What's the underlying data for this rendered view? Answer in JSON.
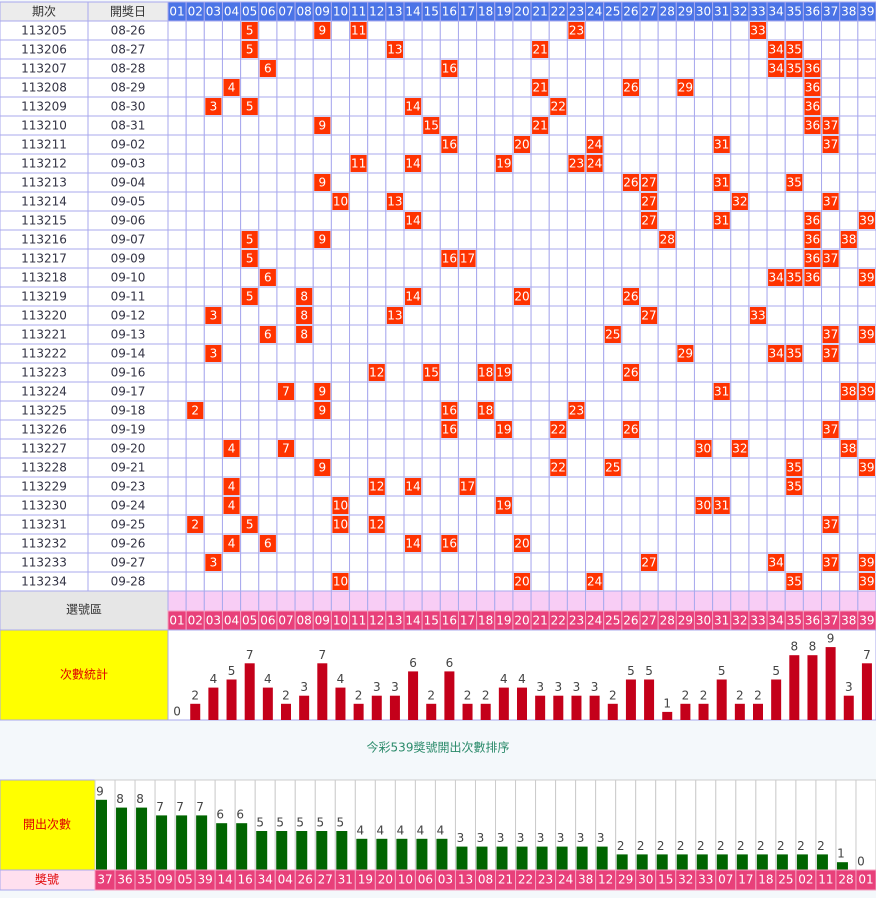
{
  "header": {
    "period": "期次",
    "date": "開獎日"
  },
  "columns": [
    "01",
    "02",
    "03",
    "04",
    "05",
    "06",
    "07",
    "08",
    "09",
    "10",
    "11",
    "12",
    "13",
    "14",
    "15",
    "16",
    "17",
    "18",
    "19",
    "20",
    "21",
    "22",
    "23",
    "24",
    "25",
    "26",
    "27",
    "28",
    "29",
    "30",
    "31",
    "32",
    "33",
    "34",
    "35",
    "36",
    "37",
    "38",
    "39"
  ],
  "draws": [
    {
      "period": "113205",
      "date": "08-26",
      "numbers": [
        5,
        9,
        11,
        23,
        33
      ]
    },
    {
      "period": "113206",
      "date": "08-27",
      "numbers": [
        5,
        13,
        21,
        34,
        35
      ]
    },
    {
      "period": "113207",
      "date": "08-28",
      "numbers": [
        6,
        16,
        34,
        35,
        36
      ]
    },
    {
      "period": "113208",
      "date": "08-29",
      "numbers": [
        4,
        21,
        26,
        29,
        36
      ]
    },
    {
      "period": "113209",
      "date": "08-30",
      "numbers": [
        3,
        5,
        14,
        22,
        36
      ]
    },
    {
      "period": "113210",
      "date": "08-31",
      "numbers": [
        9,
        15,
        21,
        36,
        37
      ]
    },
    {
      "period": "113211",
      "date": "09-02",
      "numbers": [
        16,
        20,
        24,
        31,
        37
      ]
    },
    {
      "period": "113212",
      "date": "09-03",
      "numbers": [
        11,
        14,
        19,
        23,
        24
      ]
    },
    {
      "period": "113213",
      "date": "09-04",
      "numbers": [
        9,
        26,
        27,
        31,
        35
      ]
    },
    {
      "period": "113214",
      "date": "09-05",
      "numbers": [
        10,
        13,
        27,
        32,
        37
      ]
    },
    {
      "period": "113215",
      "date": "09-06",
      "numbers": [
        14,
        27,
        31,
        36,
        39
      ]
    },
    {
      "period": "113216",
      "date": "09-07",
      "numbers": [
        5,
        9,
        28,
        36,
        38
      ]
    },
    {
      "period": "113217",
      "date": "09-09",
      "numbers": [
        5,
        16,
        17,
        36,
        37
      ]
    },
    {
      "period": "113218",
      "date": "09-10",
      "numbers": [
        6,
        34,
        35,
        36,
        39
      ]
    },
    {
      "period": "113219",
      "date": "09-11",
      "numbers": [
        5,
        8,
        14,
        20,
        26
      ]
    },
    {
      "period": "113220",
      "date": "09-12",
      "numbers": [
        3,
        8,
        13,
        27,
        33
      ]
    },
    {
      "period": "113221",
      "date": "09-13",
      "numbers": [
        6,
        8,
        25,
        37,
        39
      ]
    },
    {
      "period": "113222",
      "date": "09-14",
      "numbers": [
        3,
        29,
        34,
        35,
        37
      ]
    },
    {
      "period": "113223",
      "date": "09-16",
      "numbers": [
        12,
        15,
        18,
        19,
        26
      ]
    },
    {
      "period": "113224",
      "date": "09-17",
      "numbers": [
        7,
        9,
        31,
        38,
        39
      ]
    },
    {
      "period": "113225",
      "date": "09-18",
      "numbers": [
        2,
        9,
        16,
        18,
        23
      ]
    },
    {
      "period": "113226",
      "date": "09-19",
      "numbers": [
        16,
        19,
        22,
        26,
        37
      ]
    },
    {
      "period": "113227",
      "date": "09-20",
      "numbers": [
        4,
        7,
        30,
        32,
        38
      ]
    },
    {
      "period": "113228",
      "date": "09-21",
      "numbers": [
        9,
        22,
        25,
        35,
        39
      ]
    },
    {
      "period": "113229",
      "date": "09-23",
      "numbers": [
        4,
        12,
        14,
        17,
        35
      ]
    },
    {
      "period": "113230",
      "date": "09-24",
      "numbers": [
        4,
        10,
        19,
        30,
        31
      ]
    },
    {
      "period": "113231",
      "date": "09-25",
      "numbers": [
        2,
        5,
        10,
        12,
        37
      ]
    },
    {
      "period": "113232",
      "date": "09-26",
      "numbers": [
        4,
        6,
        14,
        16,
        20
      ]
    },
    {
      "period": "113233",
      "date": "09-27",
      "numbers": [
        3,
        27,
        34,
        37,
        39
      ]
    },
    {
      "period": "113234",
      "date": "09-28",
      "numbers": [
        10,
        20,
        24,
        35,
        39
      ]
    }
  ],
  "select_label": "選號區",
  "stats": {
    "label": "次數統計",
    "counts": [
      0,
      2,
      4,
      5,
      7,
      4,
      2,
      3,
      7,
      4,
      2,
      3,
      3,
      6,
      2,
      6,
      2,
      2,
      4,
      4,
      3,
      3,
      3,
      3,
      2,
      5,
      5,
      1,
      2,
      2,
      5,
      2,
      2,
      5,
      8,
      8,
      9,
      3,
      7
    ]
  },
  "caption": "今彩539獎號開出次數排序",
  "ranking": {
    "count_label": "開出次數",
    "number_label": "獎號",
    "numbers": [
      "37",
      "36",
      "35",
      "09",
      "05",
      "39",
      "14",
      "16",
      "34",
      "04",
      "26",
      "27",
      "31",
      "19",
      "20",
      "10",
      "06",
      "03",
      "13",
      "08",
      "21",
      "22",
      "23",
      "24",
      "38",
      "12",
      "29",
      "30",
      "15",
      "32",
      "33",
      "07",
      "17",
      "18",
      "25",
      "02",
      "11",
      "28",
      "01"
    ],
    "counts": [
      9,
      8,
      8,
      7,
      7,
      7,
      6,
      6,
      5,
      5,
      5,
      5,
      5,
      4,
      4,
      4,
      4,
      4,
      3,
      3,
      3,
      3,
      3,
      3,
      3,
      3,
      2,
      2,
      2,
      2,
      2,
      2,
      2,
      2,
      2,
      2,
      2,
      1,
      0
    ]
  }
}
